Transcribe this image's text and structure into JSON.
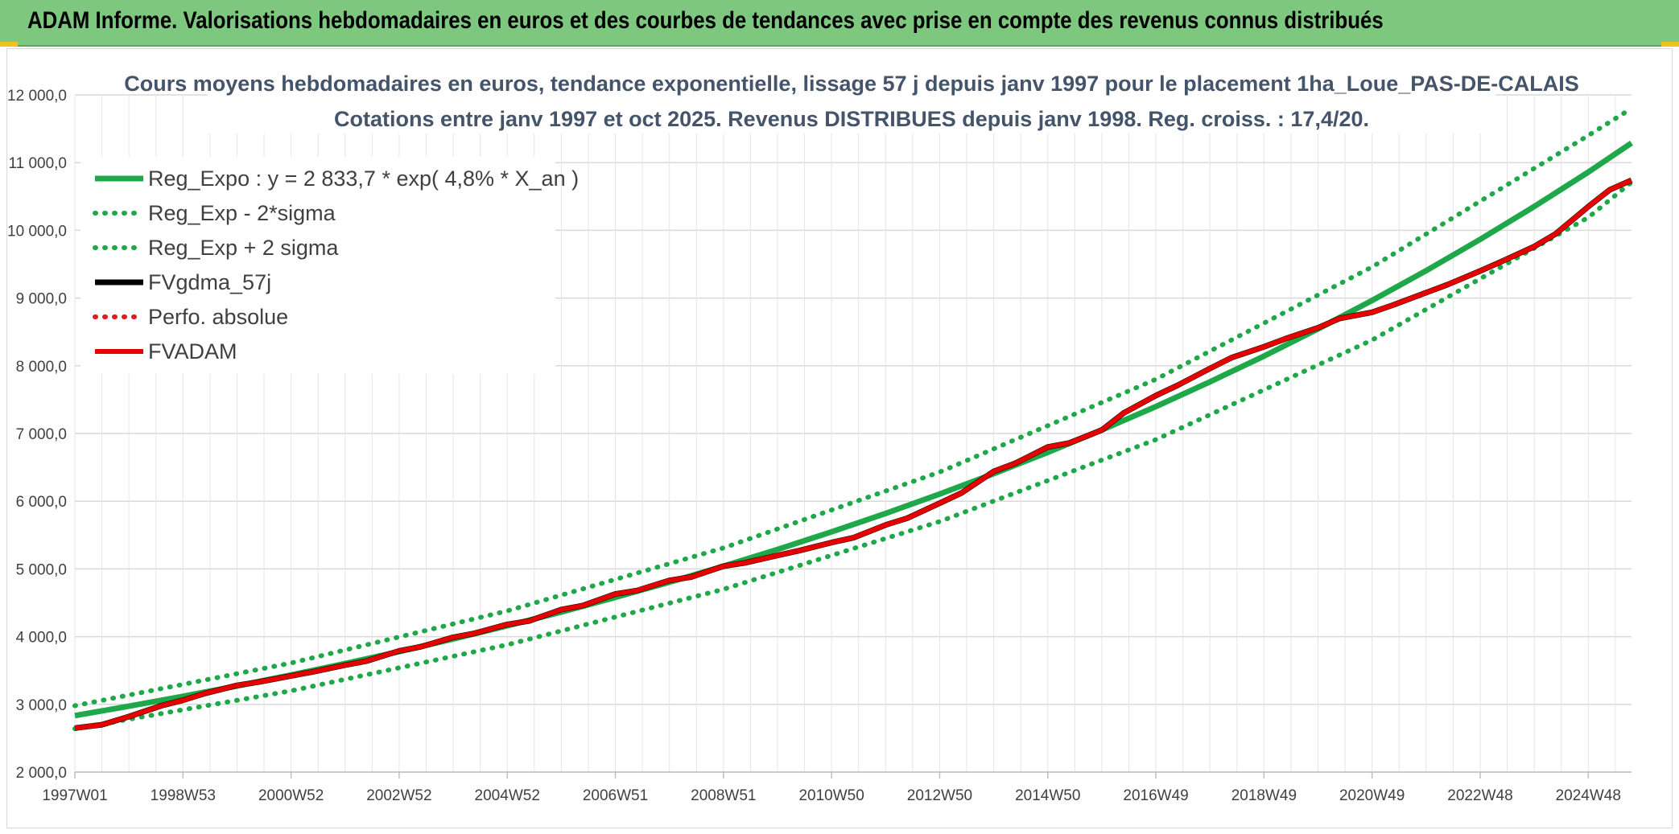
{
  "page": {
    "banner_title": "ADAM Informe. Valorisations hebdomadaires en euros et des courbes de tendances avec prise en compte des revenus connus distribués"
  },
  "chart_data": {
    "type": "line",
    "title_line1": "Cours moyens hebdomadaires en euros, tendance exponentielle, lissage 57 j depuis janv 1997 pour le placement 1ha_Loue_PAS-DE-CALAIS",
    "title_line2": "Cotations entre janv 1997 et oct 2025. Revenus DISTRIBUES depuis janv 1998. Reg. croiss. : 17,4/20.",
    "xlabel": "",
    "ylabel": "",
    "ylim": [
      2000,
      12000
    ],
    "y_ticks": [
      "2 000,0",
      "3 000,0",
      "4 000,0",
      "5 000,0",
      "6 000,0",
      "7 000,0",
      "8 000,0",
      "9 000,0",
      "10 000,0",
      "11 000,0",
      "12 000,0"
    ],
    "x_range_years": [
      1997.0,
      2025.8
    ],
    "x_ticks": [
      {
        "label": "1997W01",
        "t": 1997.0
      },
      {
        "label": "1998W53",
        "t": 1999.0
      },
      {
        "label": "2000W52",
        "t": 2001.0
      },
      {
        "label": "2002W52",
        "t": 2003.0
      },
      {
        "label": "2004W52",
        "t": 2005.0
      },
      {
        "label": "2006W51",
        "t": 2007.0
      },
      {
        "label": "2008W51",
        "t": 2009.0
      },
      {
        "label": "2010W50",
        "t": 2011.0
      },
      {
        "label": "2012W50",
        "t": 2013.0
      },
      {
        "label": "2014W50",
        "t": 2015.0
      },
      {
        "label": "2016W49",
        "t": 2017.0
      },
      {
        "label": "2018W49",
        "t": 2019.0
      },
      {
        "label": "2020W49",
        "t": 2021.0
      },
      {
        "label": "2022W48",
        "t": 2023.0
      },
      {
        "label": "2024W48",
        "t": 2025.0
      }
    ],
    "grid": true,
    "legend_position": "top-left",
    "series": [
      {
        "name": "Reg_Expo : y = 2 833,7 * exp( 4,8% *  X_an )",
        "style": "solid",
        "color": "#1fa84a",
        "x": [
          1997,
          1998,
          1999,
          2000,
          2001,
          2002,
          2003,
          2004,
          2005,
          2006,
          2007,
          2008,
          2009,
          2010,
          2011,
          2012,
          2013,
          2014,
          2015,
          2016,
          2017,
          2018,
          2019,
          2020,
          2021,
          2022,
          2023,
          2024,
          2025,
          2025.8
        ],
        "y": [
          2834,
          2973,
          3119,
          3272,
          3433,
          3602,
          3779,
          3965,
          4160,
          4364,
          4579,
          4804,
          5040,
          5288,
          5548,
          5820,
          6106,
          6406,
          6721,
          7052,
          7398,
          7762,
          8143,
          8544,
          8964,
          9404,
          9867,
          10352,
          10860,
          11290
        ]
      },
      {
        "name": "Reg_Exp - 2*sigma",
        "style": "dotted",
        "color": "#1fa84a",
        "x": [
          1997,
          2001,
          2005,
          2009,
          2013,
          2017,
          2021,
          2025,
          2025.8
        ],
        "y": [
          2640,
          3200,
          3880,
          4700,
          5700,
          6910,
          8380,
          10190,
          10710
        ]
      },
      {
        "name": "Reg_Exp + 2 sigma",
        "style": "dotted",
        "color": "#1fa84a",
        "x": [
          1997,
          2001,
          2005,
          2009,
          2013,
          2017,
          2021,
          2025,
          2025.8
        ],
        "y": [
          2980,
          3610,
          4380,
          5310,
          6430,
          7800,
          9460,
          11400,
          11800
        ]
      },
      {
        "name": "FVgdma_57j",
        "style": "solid",
        "color": "#000000",
        "x": [
          1997.0,
          1997.5,
          1998.0,
          1998.6,
          1999.0,
          1999.4,
          2000.0,
          2000.4,
          2001.0,
          2001.4,
          2002.0,
          2002.4,
          2003.0,
          2003.4,
          2004.0,
          2004.4,
          2005.0,
          2005.4,
          2006.0,
          2006.4,
          2007.0,
          2007.4,
          2008.0,
          2008.4,
          2009.0,
          2009.4,
          2010.0,
          2010.4,
          2011.0,
          2011.4,
          2012.0,
          2012.4,
          2013.0,
          2013.4,
          2014.0,
          2014.4,
          2015.0,
          2015.4,
          2016.0,
          2016.4,
          2017.0,
          2017.4,
          2018.0,
          2018.4,
          2019.0,
          2019.4,
          2020.0,
          2020.4,
          2021.0,
          2021.4,
          2022.0,
          2022.4,
          2023.0,
          2023.4,
          2024.0,
          2024.4,
          2025.0,
          2025.4,
          2025.8
        ],
        "y": [
          2650,
          2700,
          2820,
          2980,
          3060,
          3160,
          3280,
          3330,
          3420,
          3480,
          3580,
          3640,
          3790,
          3850,
          3990,
          4050,
          4180,
          4230,
          4400,
          4460,
          4630,
          4680,
          4830,
          4880,
          5040,
          5090,
          5200,
          5270,
          5390,
          5460,
          5650,
          5750,
          5970,
          6120,
          6440,
          6560,
          6800,
          6860,
          7050,
          7300,
          7560,
          7710,
          7960,
          8120,
          8280,
          8400,
          8560,
          8700,
          8790,
          8900,
          9080,
          9200,
          9400,
          9540,
          9760,
          9950,
          10350,
          10600,
          10740
        ]
      },
      {
        "name": "Perfo. absolue",
        "style": "dotted",
        "color": "#e31a1c",
        "x": [],
        "y": []
      },
      {
        "name": "FVADAM",
        "style": "solid",
        "color": "#e60000",
        "x": [
          1997.0,
          1997.5,
          1998.0,
          1998.6,
          1999.0,
          1999.4,
          2000.0,
          2000.4,
          2001.0,
          2001.4,
          2002.0,
          2002.4,
          2003.0,
          2003.4,
          2004.0,
          2004.4,
          2005.0,
          2005.4,
          2006.0,
          2006.4,
          2007.0,
          2007.4,
          2008.0,
          2008.4,
          2009.0,
          2009.4,
          2010.0,
          2010.4,
          2011.0,
          2011.4,
          2012.0,
          2012.4,
          2013.0,
          2013.4,
          2014.0,
          2014.4,
          2015.0,
          2015.4,
          2016.0,
          2016.4,
          2017.0,
          2017.4,
          2018.0,
          2018.4,
          2019.0,
          2019.4,
          2020.0,
          2020.4,
          2021.0,
          2021.4,
          2022.0,
          2022.4,
          2023.0,
          2023.4,
          2024.0,
          2024.4,
          2025.0,
          2025.4,
          2025.8
        ],
        "y": [
          2650,
          2700,
          2820,
          2980,
          3060,
          3160,
          3280,
          3330,
          3420,
          3480,
          3580,
          3640,
          3790,
          3850,
          3990,
          4050,
          4180,
          4230,
          4400,
          4460,
          4630,
          4680,
          4830,
          4880,
          5040,
          5090,
          5200,
          5270,
          5390,
          5460,
          5650,
          5750,
          5970,
          6120,
          6440,
          6560,
          6800,
          6860,
          7050,
          7300,
          7560,
          7710,
          7960,
          8120,
          8280,
          8400,
          8560,
          8700,
          8790,
          8900,
          9080,
          9200,
          9400,
          9540,
          9760,
          9950,
          10350,
          10600,
          10740
        ]
      }
    ]
  }
}
